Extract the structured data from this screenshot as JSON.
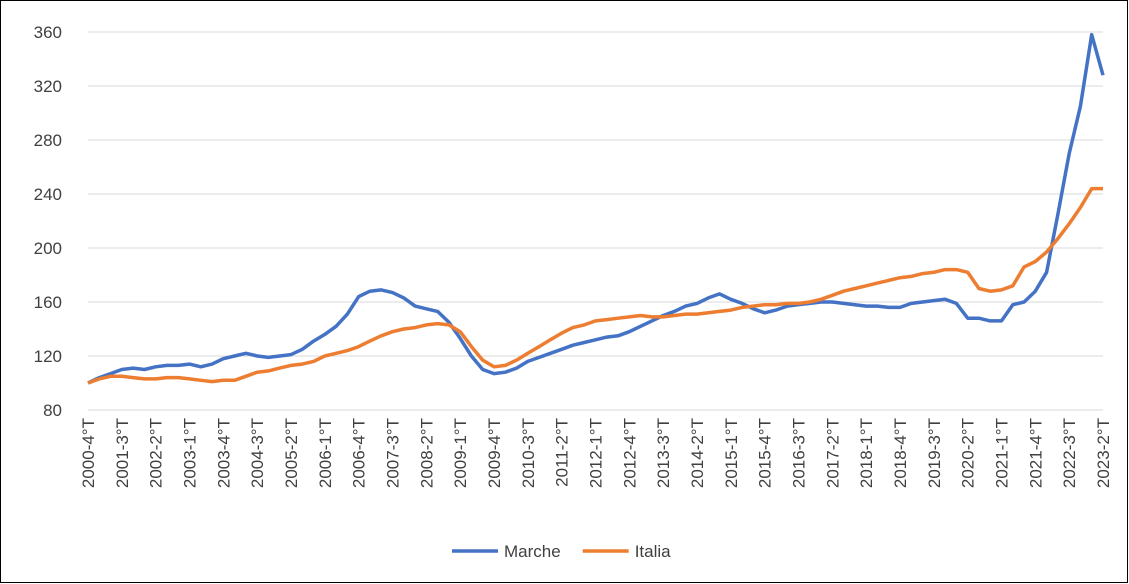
{
  "chart_data": {
    "type": "line",
    "categories": [
      "2000-4°T",
      null,
      null,
      "2001-3°T",
      null,
      null,
      "2002-2°T",
      null,
      null,
      "2003-1°T",
      null,
      null,
      "2003-4°T",
      null,
      null,
      "2004-3°T",
      null,
      null,
      "2005-2°T",
      null,
      null,
      "2006-1°T",
      null,
      null,
      "2006-4°T",
      null,
      null,
      "2007-3°T",
      null,
      null,
      "2008-2°T",
      null,
      null,
      "2009-1°T",
      null,
      null,
      "2009-4°T",
      null,
      null,
      "2010-3°T",
      null,
      null,
      "2011-2°T",
      null,
      null,
      "2012-1°T",
      null,
      null,
      "2012-4°T",
      null,
      null,
      "2013-3°T",
      null,
      null,
      "2014-2°T",
      null,
      null,
      "2015-1°T",
      null,
      null,
      "2015-4°T",
      null,
      null,
      "2016-3°T",
      null,
      null,
      "2017-2°T",
      null,
      null,
      "2018-1°T",
      null,
      null,
      "2018-4°T",
      null,
      null,
      "2019-3°T",
      null,
      null,
      "2020-2°T",
      null,
      null,
      "2021-1°T",
      null,
      null,
      "2021-4°T",
      null,
      null,
      "2022-3°T",
      null,
      null,
      "2023-2°T"
    ],
    "series": [
      {
        "name": "Marche",
        "color": "#4472c4",
        "values": [
          100,
          104,
          107,
          110,
          111,
          110,
          112,
          113,
          113,
          114,
          112,
          114,
          118,
          120,
          122,
          120,
          119,
          120,
          121,
          125,
          131,
          136,
          142,
          151,
          164,
          168,
          169,
          167,
          163,
          157,
          155,
          153,
          145,
          133,
          120,
          110,
          107,
          108,
          111,
          116,
          119,
          122,
          125,
          128,
          130,
          132,
          134,
          135,
          138,
          142,
          146,
          150,
          153,
          157,
          159,
          163,
          166,
          162,
          159,
          155,
          152,
          154,
          157,
          158,
          159,
          160,
          160,
          159,
          158,
          157,
          157,
          156,
          156,
          159,
          160,
          161,
          162,
          159,
          148,
          148,
          146,
          146,
          158,
          160,
          168,
          182,
          225,
          270,
          305,
          358,
          328
        ]
      },
      {
        "name": "Italia",
        "color": "#ed7d31",
        "values": [
          100,
          103,
          105,
          105,
          104,
          103,
          103,
          104,
          104,
          103,
          102,
          101,
          102,
          102,
          105,
          108,
          109,
          111,
          113,
          114,
          116,
          120,
          122,
          124,
          127,
          131,
          135,
          138,
          140,
          141,
          143,
          144,
          143,
          138,
          127,
          117,
          112,
          113,
          117,
          122,
          127,
          132,
          137,
          141,
          143,
          146,
          147,
          148,
          149,
          150,
          149,
          149,
          150,
          151,
          151,
          152,
          153,
          154,
          156,
          157,
          158,
          158,
          159,
          159,
          160,
          162,
          165,
          168,
          170,
          172,
          174,
          176,
          178,
          179,
          181,
          182,
          184,
          184,
          182,
          170,
          168,
          169,
          172,
          186,
          190,
          197,
          207,
          218,
          230,
          244,
          244
        ]
      }
    ],
    "ylim": [
      80,
      360
    ],
    "yticks": [
      80,
      120,
      160,
      200,
      240,
      280,
      320,
      360
    ],
    "grid": true,
    "legend": "bottom"
  }
}
